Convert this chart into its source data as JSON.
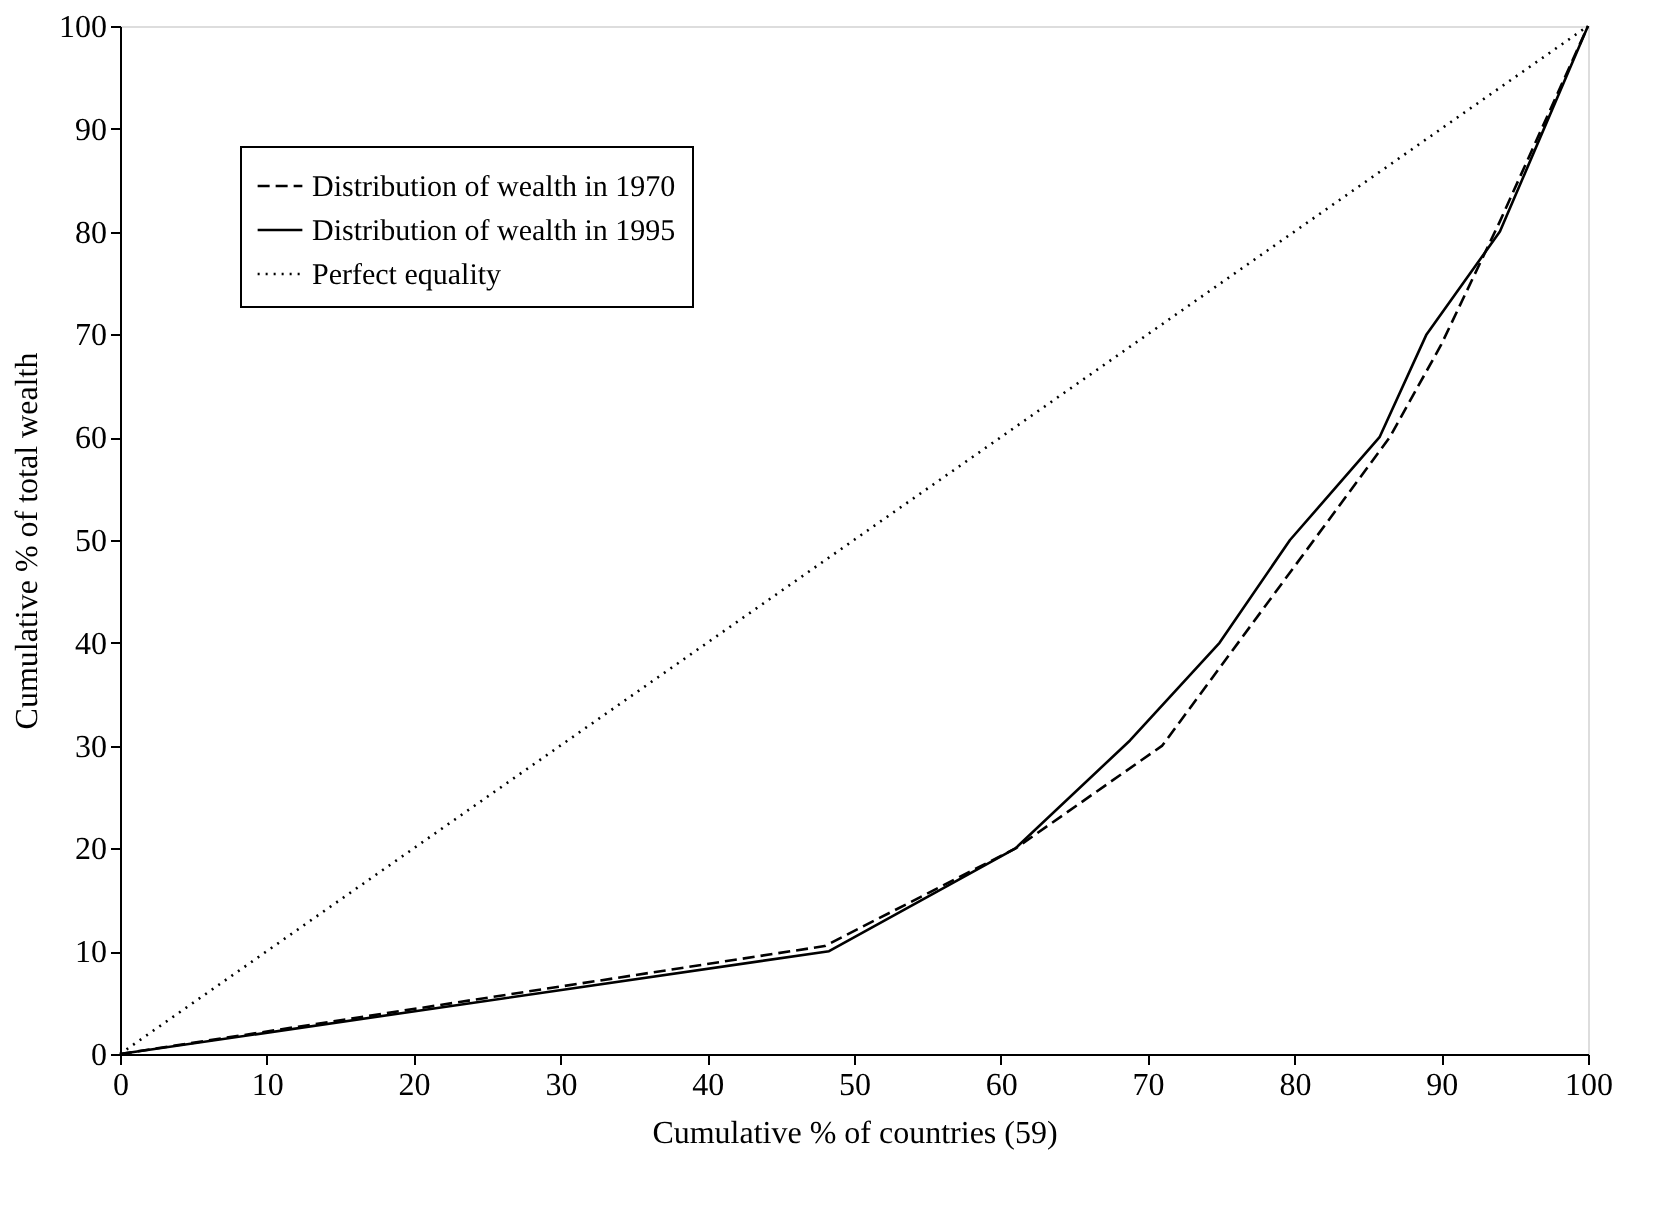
{
  "chart_data": {
    "type": "line",
    "xlabel": "Cumulative % of countries (59)",
    "ylabel": "Cumulative % of total wealth",
    "xlim": [
      0,
      100
    ],
    "ylim": [
      0,
      100
    ],
    "xticks": [
      0,
      10,
      20,
      30,
      40,
      50,
      60,
      70,
      80,
      90,
      100
    ],
    "yticks": [
      0,
      10,
      20,
      30,
      40,
      50,
      60,
      70,
      80,
      90,
      100
    ],
    "grid": false,
    "legend": "top left",
    "marker": "none",
    "series": [
      {
        "name": "Distribution of wealth in 1970",
        "color": "#000000",
        "line_style": "dashed",
        "x": [
          0,
          48,
          61,
          71,
          86.5,
          90,
          94,
          100
        ],
        "values": [
          0,
          10.5,
          20,
          30,
          60,
          69,
          81,
          100
        ]
      },
      {
        "name": "Distribution of wealth in 1995",
        "color": "#000000",
        "line_style": "solid",
        "x": [
          0,
          48.3,
          61,
          68.8,
          74.9,
          79.7,
          85.8,
          89,
          94,
          100
        ],
        "values": [
          0,
          10,
          20,
          30.5,
          40,
          50,
          60,
          70,
          80,
          100
        ]
      },
      {
        "name": "Perfect equality",
        "color": "#000000",
        "line_style": "dotted",
        "x": [
          0,
          100
        ],
        "values": [
          0,
          100
        ]
      }
    ]
  }
}
